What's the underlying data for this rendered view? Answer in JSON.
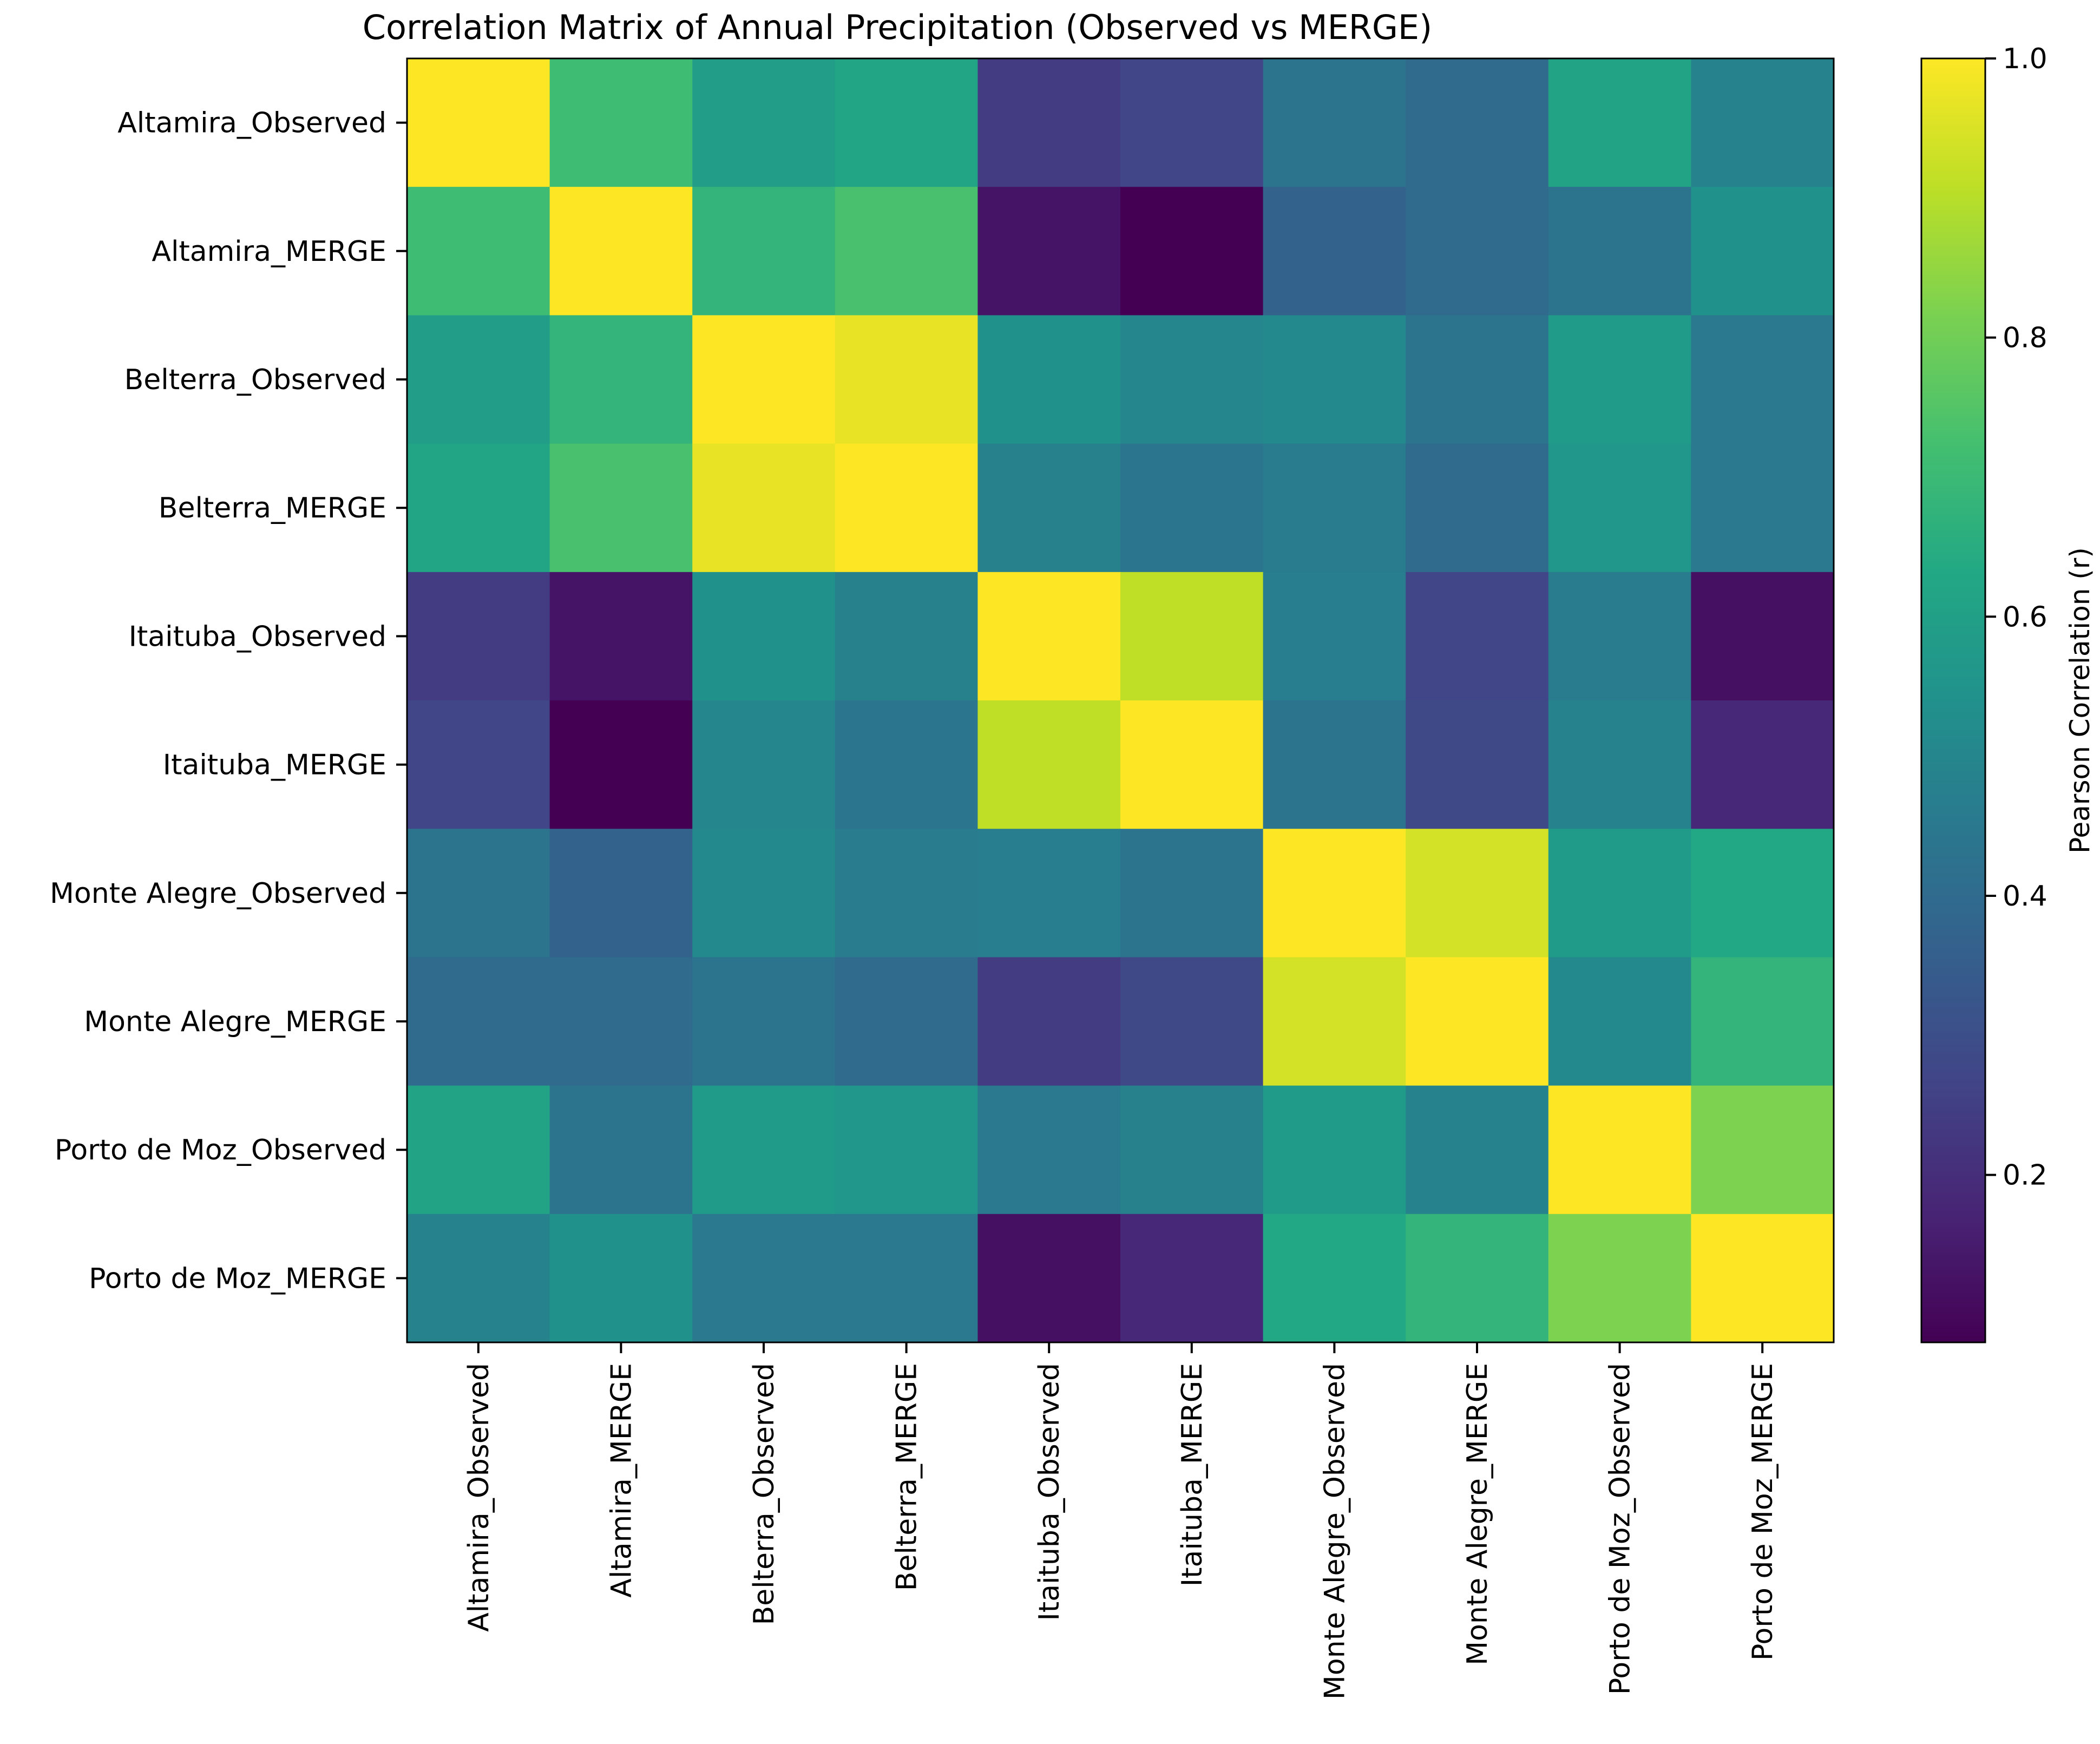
{
  "chart_data": {
    "type": "heatmap",
    "title": "Correlation Matrix of Annual Precipitation (Observed vs MERGE)",
    "row_labels": [
      "Altamira_Observed",
      "Altamira_MERGE",
      "Belterra_Observed",
      "Belterra_MERGE",
      "Itaituba_Observed",
      "Itaituba_MERGE",
      "Monte Alegre_Observed",
      "Monte Alegre_MERGE",
      "Porto de Moz_Observed",
      "Porto de Moz_MERGE"
    ],
    "col_labels": [
      "Altamira_Observed",
      "Altamira_MERGE",
      "Belterra_Observed",
      "Belterra_MERGE",
      "Itaituba_Observed",
      "Itaituba_MERGE",
      "Monte Alegre_Observed",
      "Monte Alegre_MERGE",
      "Porto de Moz_Observed",
      "Porto de Moz_MERGE"
    ],
    "values": [
      [
        1.0,
        0.71,
        0.59,
        0.62,
        0.24,
        0.27,
        0.43,
        0.4,
        0.61,
        0.49
      ],
      [
        0.71,
        1.0,
        0.68,
        0.73,
        0.13,
        0.08,
        0.37,
        0.4,
        0.43,
        0.54
      ],
      [
        0.59,
        0.68,
        1.0,
        0.97,
        0.54,
        0.5,
        0.51,
        0.43,
        0.58,
        0.45
      ],
      [
        0.62,
        0.73,
        0.97,
        1.0,
        0.48,
        0.44,
        0.46,
        0.4,
        0.56,
        0.45
      ],
      [
        0.24,
        0.13,
        0.54,
        0.48,
        1.0,
        0.91,
        0.47,
        0.27,
        0.46,
        0.12
      ],
      [
        0.27,
        0.08,
        0.5,
        0.44,
        0.91,
        1.0,
        0.43,
        0.28,
        0.49,
        0.18
      ],
      [
        0.43,
        0.37,
        0.51,
        0.46,
        0.47,
        0.43,
        1.0,
        0.94,
        0.58,
        0.63
      ],
      [
        0.4,
        0.4,
        0.43,
        0.4,
        0.24,
        0.28,
        0.94,
        1.0,
        0.51,
        0.68
      ],
      [
        0.61,
        0.43,
        0.58,
        0.56,
        0.45,
        0.48,
        0.58,
        0.49,
        1.0,
        0.82
      ],
      [
        0.49,
        0.54,
        0.45,
        0.45,
        0.12,
        0.18,
        0.63,
        0.68,
        0.82,
        1.0
      ]
    ],
    "colorbar": {
      "label": "Pearson Correlation (r)",
      "range": [
        0.08,
        1.0
      ],
      "ticks": [
        0.2,
        0.4,
        0.6,
        0.8,
        1.0
      ],
      "tick_labels": [
        "0.2",
        "0.4",
        "0.6",
        "0.8",
        "1.0"
      ],
      "colormap": "viridis"
    },
    "grid": false
  }
}
